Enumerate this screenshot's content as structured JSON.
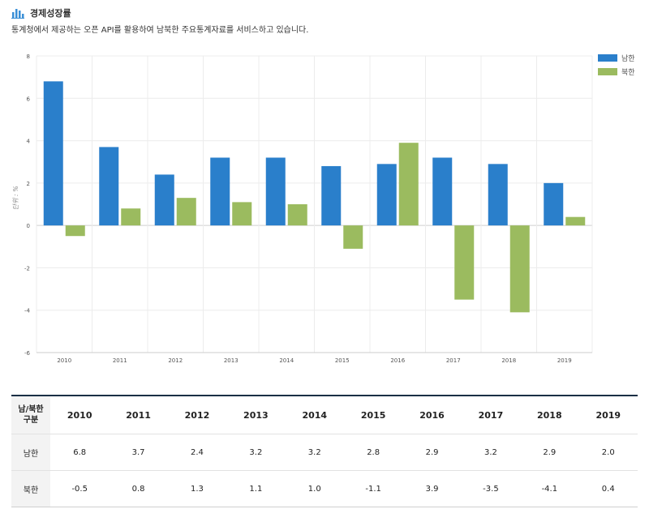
{
  "header": {
    "title": "경제성장률",
    "subtitle": "통계청에서 제공하는 오픈 API를 활용하여 남북한 주요통계자료를 서비스하고 있습니다."
  },
  "table": {
    "corner_line1": "남/북한",
    "corner_line2": "구분",
    "columns": [
      "2010",
      "2011",
      "2012",
      "2013",
      "2014",
      "2015",
      "2016",
      "2017",
      "2018",
      "2019"
    ],
    "rows": [
      {
        "label": "남한",
        "values": [
          "6.8",
          "3.7",
          "2.4",
          "3.2",
          "3.2",
          "2.8",
          "2.9",
          "3.2",
          "2.9",
          "2.0"
        ]
      },
      {
        "label": "북한",
        "values": [
          "-0.5",
          "0.8",
          "1.3",
          "1.1",
          "1.0",
          "-1.1",
          "3.9",
          "-3.5",
          "-4.1",
          "0.4"
        ]
      }
    ]
  },
  "chart_data": {
    "type": "bar",
    "categories": [
      "2010",
      "2011",
      "2012",
      "2013",
      "2014",
      "2015",
      "2016",
      "2017",
      "2018",
      "2019"
    ],
    "series": [
      {
        "name": "남한",
        "color": "#2a7fcb",
        "values": [
          6.8,
          3.7,
          2.4,
          3.2,
          3.2,
          2.8,
          2.9,
          3.2,
          2.9,
          2.0
        ]
      },
      {
        "name": "북한",
        "color": "#9bbb5f",
        "values": [
          -0.5,
          0.8,
          1.3,
          1.1,
          1.0,
          -1.1,
          3.9,
          -3.5,
          -4.1,
          0.4
        ]
      }
    ],
    "ylabel": "단위 : %",
    "ylim": [
      -6,
      8
    ],
    "yticks": [
      -6,
      -4,
      -2,
      0,
      2,
      4,
      6,
      8
    ],
    "grid": true,
    "legend": "top-right"
  }
}
